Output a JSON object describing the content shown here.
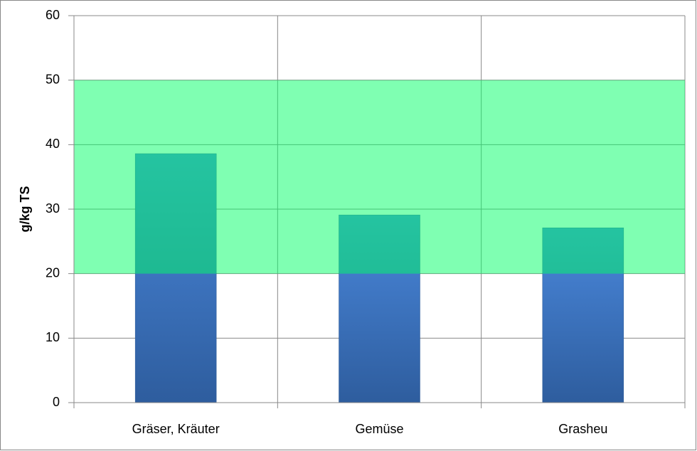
{
  "chart_data": {
    "type": "bar",
    "y_label": "g/kg TS",
    "categories": [
      "Gräser, Kräuter",
      "Gemüse",
      "Grasheu"
    ],
    "values": [
      38.6,
      29.1,
      27.1
    ],
    "color": "#3d72bf",
    "band": [
      20,
      50
    ],
    "band_color": "#00ff66",
    "ylim": [
      0,
      60
    ],
    "yticks": [
      0,
      10,
      20,
      30,
      40,
      50,
      60
    ],
    "grid": true
  }
}
